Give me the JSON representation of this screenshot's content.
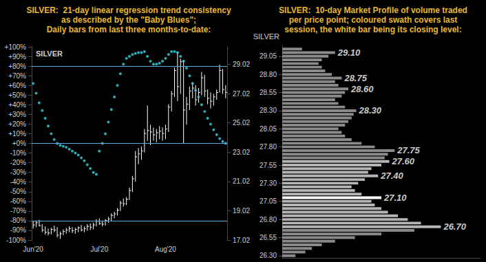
{
  "chart_data": [
    {
      "type": "ohlc",
      "title": "SILVER:  21-day linear regression trend consistency\nas described by the \"Baby Blues\";\nDaily bars from last three months-to-date:",
      "subtitle": "SILVER",
      "categories": [
        "Jun'20",
        null,
        null,
        null,
        null,
        null,
        null,
        null,
        null,
        null,
        null,
        null,
        null,
        null,
        null,
        null,
        null,
        null,
        null,
        null,
        null,
        null,
        "Jul'20",
        null,
        null,
        null,
        null,
        null,
        null,
        null,
        null,
        null,
        null,
        null,
        null,
        null,
        null,
        null,
        null,
        null,
        null,
        null,
        null,
        null,
        "Aug'20",
        null,
        null,
        null,
        null,
        null,
        null,
        null,
        null,
        null,
        null,
        null,
        null,
        null,
        null,
        null,
        null,
        null,
        null,
        null,
        null
      ],
      "ylim": [
        -100,
        100
      ],
      "yticks": [
        {
          "value": 100,
          "label": "+100%"
        },
        {
          "value": 90,
          "label": "+90%"
        },
        {
          "value": 80,
          "label": "+80%"
        },
        {
          "value": 70,
          "label": "+70%"
        },
        {
          "value": 60,
          "label": "+60%"
        },
        {
          "value": 50,
          "label": "+50%"
        },
        {
          "value": 40,
          "label": "+40%"
        },
        {
          "value": 30,
          "label": "+30%"
        },
        {
          "value": 20,
          "label": "+20%"
        },
        {
          "value": 10,
          "label": "+10%"
        },
        {
          "value": 0,
          "label": "+0%"
        },
        {
          "value": -10,
          "label": "-10%"
        },
        {
          "value": -20,
          "label": "-20%"
        },
        {
          "value": -30,
          "label": "-30%"
        },
        {
          "value": -40,
          "label": "-40%"
        },
        {
          "value": -50,
          "label": "-50%"
        },
        {
          "value": -60,
          "label": "-60%"
        },
        {
          "value": -70,
          "label": "-70%"
        },
        {
          "value": -80,
          "label": "-80%"
        },
        {
          "value": -90,
          "label": "-90%"
        },
        {
          "value": -100,
          "label": "-100%"
        }
      ],
      "y2lim": [
        17.02,
        30.22
      ],
      "y2ticks": [
        17.02,
        19.02,
        21.02,
        23.02,
        25.02,
        27.02,
        29.02
      ],
      "reference_lines": [
        80,
        0,
        -80
      ],
      "grid": false,
      "series": [
        {
          "type": "scatter",
          "marker": "circle",
          "color": "#3ad3e6",
          "values": [
            62,
            52,
            42,
            34,
            26,
            18,
            10,
            4,
            0,
            -2,
            -3,
            -4,
            -6,
            -8,
            -10,
            -12,
            -15,
            -18,
            -22,
            -26,
            -30,
            -32,
            -8,
            0,
            10,
            22,
            35,
            48,
            60,
            72,
            82,
            88,
            90,
            92,
            93,
            94,
            94,
            95,
            90,
            85,
            82,
            82,
            83,
            85,
            88,
            92,
            95,
            95,
            94,
            90,
            85,
            78,
            70,
            62,
            55,
            48,
            40,
            33,
            26,
            20,
            14,
            9,
            5,
            2,
            0
          ]
        },
        {
          "type": "ohlc",
          "axis": "y2",
          "color": "#ffffff",
          "high": [
            18.3,
            18.35,
            18.4,
            18.1,
            17.95,
            17.8,
            17.85,
            18,
            17.9,
            17.6,
            17.75,
            17.85,
            17.95,
            17.9,
            17.85,
            17.95,
            18.05,
            17.95,
            18.1,
            18.15,
            18.2,
            18.45,
            18.5,
            18.35,
            18.45,
            18.6,
            18.85,
            18.95,
            19.2,
            19.7,
            19.85,
            19.95,
            20.6,
            21.4,
            23.1,
            23.3,
            23.4,
            24.6,
            26.2,
            24.9,
            24.7,
            24.6,
            24.8,
            24.7,
            24.9,
            26.3,
            27.2,
            28.8,
            29.9,
            29.4,
            29.3,
            26.8,
            27.5,
            27.8,
            27.6,
            27.4,
            28.5,
            28.3,
            27.3,
            27.1,
            27,
            27.3,
            29,
            28.7,
            27.6
          ],
          "low": [
            17.8,
            17.9,
            17.95,
            17.55,
            17.4,
            17.35,
            17.4,
            17.55,
            17.2,
            17.1,
            17.35,
            17.45,
            17.55,
            17.5,
            17.45,
            17.55,
            17.6,
            17.55,
            17.65,
            17.7,
            17.75,
            17.95,
            18.05,
            17.95,
            18,
            18.2,
            18.3,
            18.5,
            18.7,
            19,
            19.3,
            19.4,
            19.75,
            20.3,
            21,
            22.2,
            22.5,
            23,
            23.8,
            23.5,
            23.8,
            23.7,
            23.9,
            23.8,
            23.9,
            24.4,
            25.8,
            26.8,
            26.5,
            27,
            23.6,
            24.9,
            25.9,
            26.7,
            26.2,
            26.4,
            26.9,
            26.8,
            26.3,
            26,
            26.2,
            26.6,
            27.1,
            27,
            26.7
          ],
          "close": [
            18.05,
            18.2,
            18,
            17.7,
            17.55,
            17.5,
            17.75,
            17.7,
            17.35,
            17.45,
            17.6,
            17.7,
            17.8,
            17.65,
            17.75,
            17.85,
            17.7,
            17.8,
            17.95,
            17.9,
            18.05,
            18.3,
            18.15,
            18.1,
            18.35,
            18.45,
            18.7,
            18.8,
            19.05,
            19.55,
            19.5,
            19.8,
            20.4,
            21.2,
            22.7,
            22.9,
            23.1,
            24.3,
            24.5,
            24.4,
            24.2,
            24.35,
            24.45,
            24.3,
            24.6,
            26.1,
            27,
            28.6,
            27.5,
            29.2,
            25.9,
            26.3,
            27.2,
            27.4,
            26.6,
            27.1,
            28.1,
            27.2,
            26.7,
            26.5,
            26.8,
            27.1,
            28.6,
            27.3,
            27.1
          ]
        }
      ]
    },
    {
      "type": "bar",
      "orientation": "horizontal",
      "title": "SILVER:  10-day Market Profile of volume traded\nper price point; coloured swath covers last\nsession, the white bar being its closing level:",
      "ylabel": "SILVER",
      "color": "#8a8a8a",
      "y": [
        26.3,
        26.35,
        26.4,
        26.45,
        26.5,
        26.55,
        26.6,
        26.65,
        26.7,
        26.75,
        26.8,
        26.85,
        26.9,
        26.95,
        27,
        27.05,
        27.1,
        27.15,
        27.2,
        27.25,
        27.3,
        27.35,
        27.4,
        27.45,
        27.5,
        27.55,
        27.6,
        27.65,
        27.7,
        27.75,
        27.8,
        27.85,
        27.9,
        27.95,
        28,
        28.05,
        28.1,
        28.15,
        28.2,
        28.25,
        28.3,
        28.35,
        28.4,
        28.45,
        28.5,
        28.55,
        28.6,
        28.65,
        28.7,
        28.75,
        28.8,
        28.85,
        28.9,
        28.95,
        29,
        29.05,
        29.1,
        29.15
      ],
      "values": [
        20,
        35,
        45,
        60,
        80,
        110,
        150,
        200,
        240,
        210,
        190,
        175,
        160,
        150,
        140,
        135,
        150,
        120,
        110,
        105,
        115,
        125,
        145,
        130,
        135,
        150,
        162,
        155,
        160,
        170,
        140,
        120,
        105,
        95,
        90,
        85,
        95,
        100,
        105,
        108,
        112,
        95,
        85,
        80,
        90,
        95,
        100,
        85,
        80,
        90,
        75,
        65,
        60,
        55,
        60,
        70,
        80,
        30
      ],
      "close": 27.1,
      "session_low": 26.7,
      "session_high": 27.6,
      "xlim": [
        0,
        300
      ],
      "ylim": [
        26.27,
        29.2
      ],
      "yticks": [
        {
          "value": 26.3,
          "label": "26.30"
        },
        26.55,
        {
          "value": 26.8,
          "label": "26.80"
        },
        27.05,
        {
          "value": 27.3,
          "label": "27.30"
        },
        27.55,
        {
          "value": 27.8,
          "label": "27.80"
        },
        28.05,
        {
          "value": 28.3,
          "label": "28.30"
        },
        28.55,
        {
          "value": 28.8,
          "label": "28.80"
        },
        29.05
      ],
      "tick_labels": "y",
      "grid": false,
      "annotations": [
        {
          "y": 29.1,
          "label": "29.10"
        },
        {
          "y": 28.75,
          "label": "28.75"
        },
        {
          "y": 28.6,
          "label": "28.60"
        },
        {
          "y": 28.3,
          "label": "28.30"
        },
        {
          "y": 27.75,
          "label": "27.75"
        },
        {
          "y": 27.6,
          "label": "27.60"
        },
        {
          "y": 27.4,
          "label": "27.40"
        },
        {
          "y": 27.1,
          "label": "27.10"
        },
        {
          "y": 26.7,
          "label": "26.70"
        }
      ]
    }
  ]
}
